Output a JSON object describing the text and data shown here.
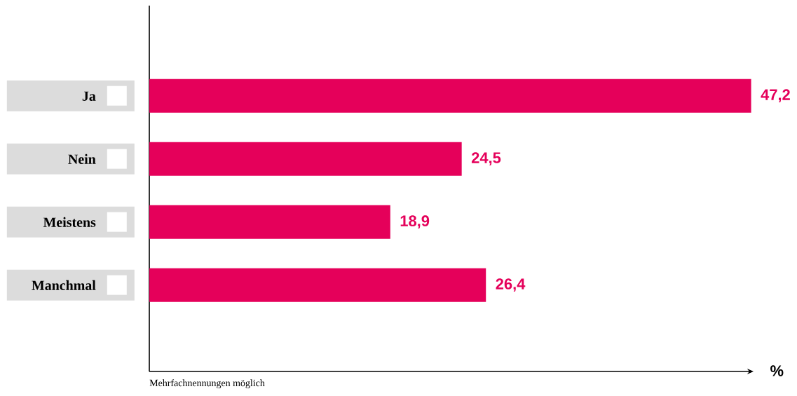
{
  "chart_data": {
    "type": "bar",
    "orientation": "horizontal",
    "categories": [
      "Ja",
      "Nein",
      "Meistens",
      "Manchmal"
    ],
    "values": [
      47.2,
      24.5,
      18.9,
      26.4
    ],
    "value_labels": [
      "47,2",
      "24,5",
      "18,9",
      "26,4"
    ],
    "color": "#e5005a",
    "xlabel": "%",
    "tick_labels": "y",
    "annotations": [
      "Mehrfachnennungen möglich"
    ]
  }
}
